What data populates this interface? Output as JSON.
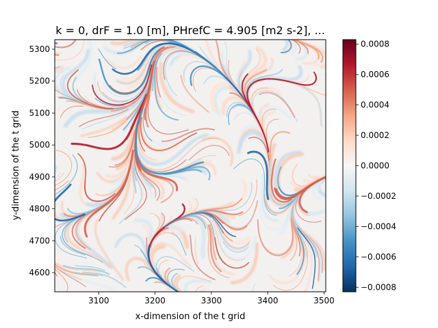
{
  "chart_data": {
    "type": "heatmap",
    "title": "k = 0, drF = 1.0 [m], PHrefC = 4.905 [m2 s-2], ...",
    "xlabel": "x-dimension of the t grid",
    "ylabel": "y-dimension of the t grid",
    "xlim": [
      3022,
      3503
    ],
    "ylim": [
      4540,
      5330
    ],
    "x_ticks": [
      3100,
      3200,
      3300,
      3400,
      3500
    ],
    "y_ticks": [
      4600,
      4700,
      4800,
      4900,
      5000,
      5100,
      5200,
      5300
    ],
    "colorbar": {
      "colormap": "RdBu_r",
      "vmin": -0.00083,
      "vmax": 0.00083,
      "ticks": [
        "0.0008",
        "0.0006",
        "0.0004",
        "0.0002",
        "0.0000",
        "−0.0002",
        "−0.0004",
        "−0.0006",
        "−0.0008"
      ],
      "tick_values": [
        0.0008,
        0.0006,
        0.0004,
        0.0002,
        0.0,
        -0.0002,
        -0.0004,
        -0.0006,
        -0.0008
      ],
      "colors": [
        "#053061",
        "#2166ac",
        "#4393c3",
        "#92c5de",
        "#d1e5f0",
        "#f7f7f7",
        "#fddbc7",
        "#f4a582",
        "#d6604d",
        "#b2182b",
        "#67001f"
      ]
    },
    "grid": false
  }
}
